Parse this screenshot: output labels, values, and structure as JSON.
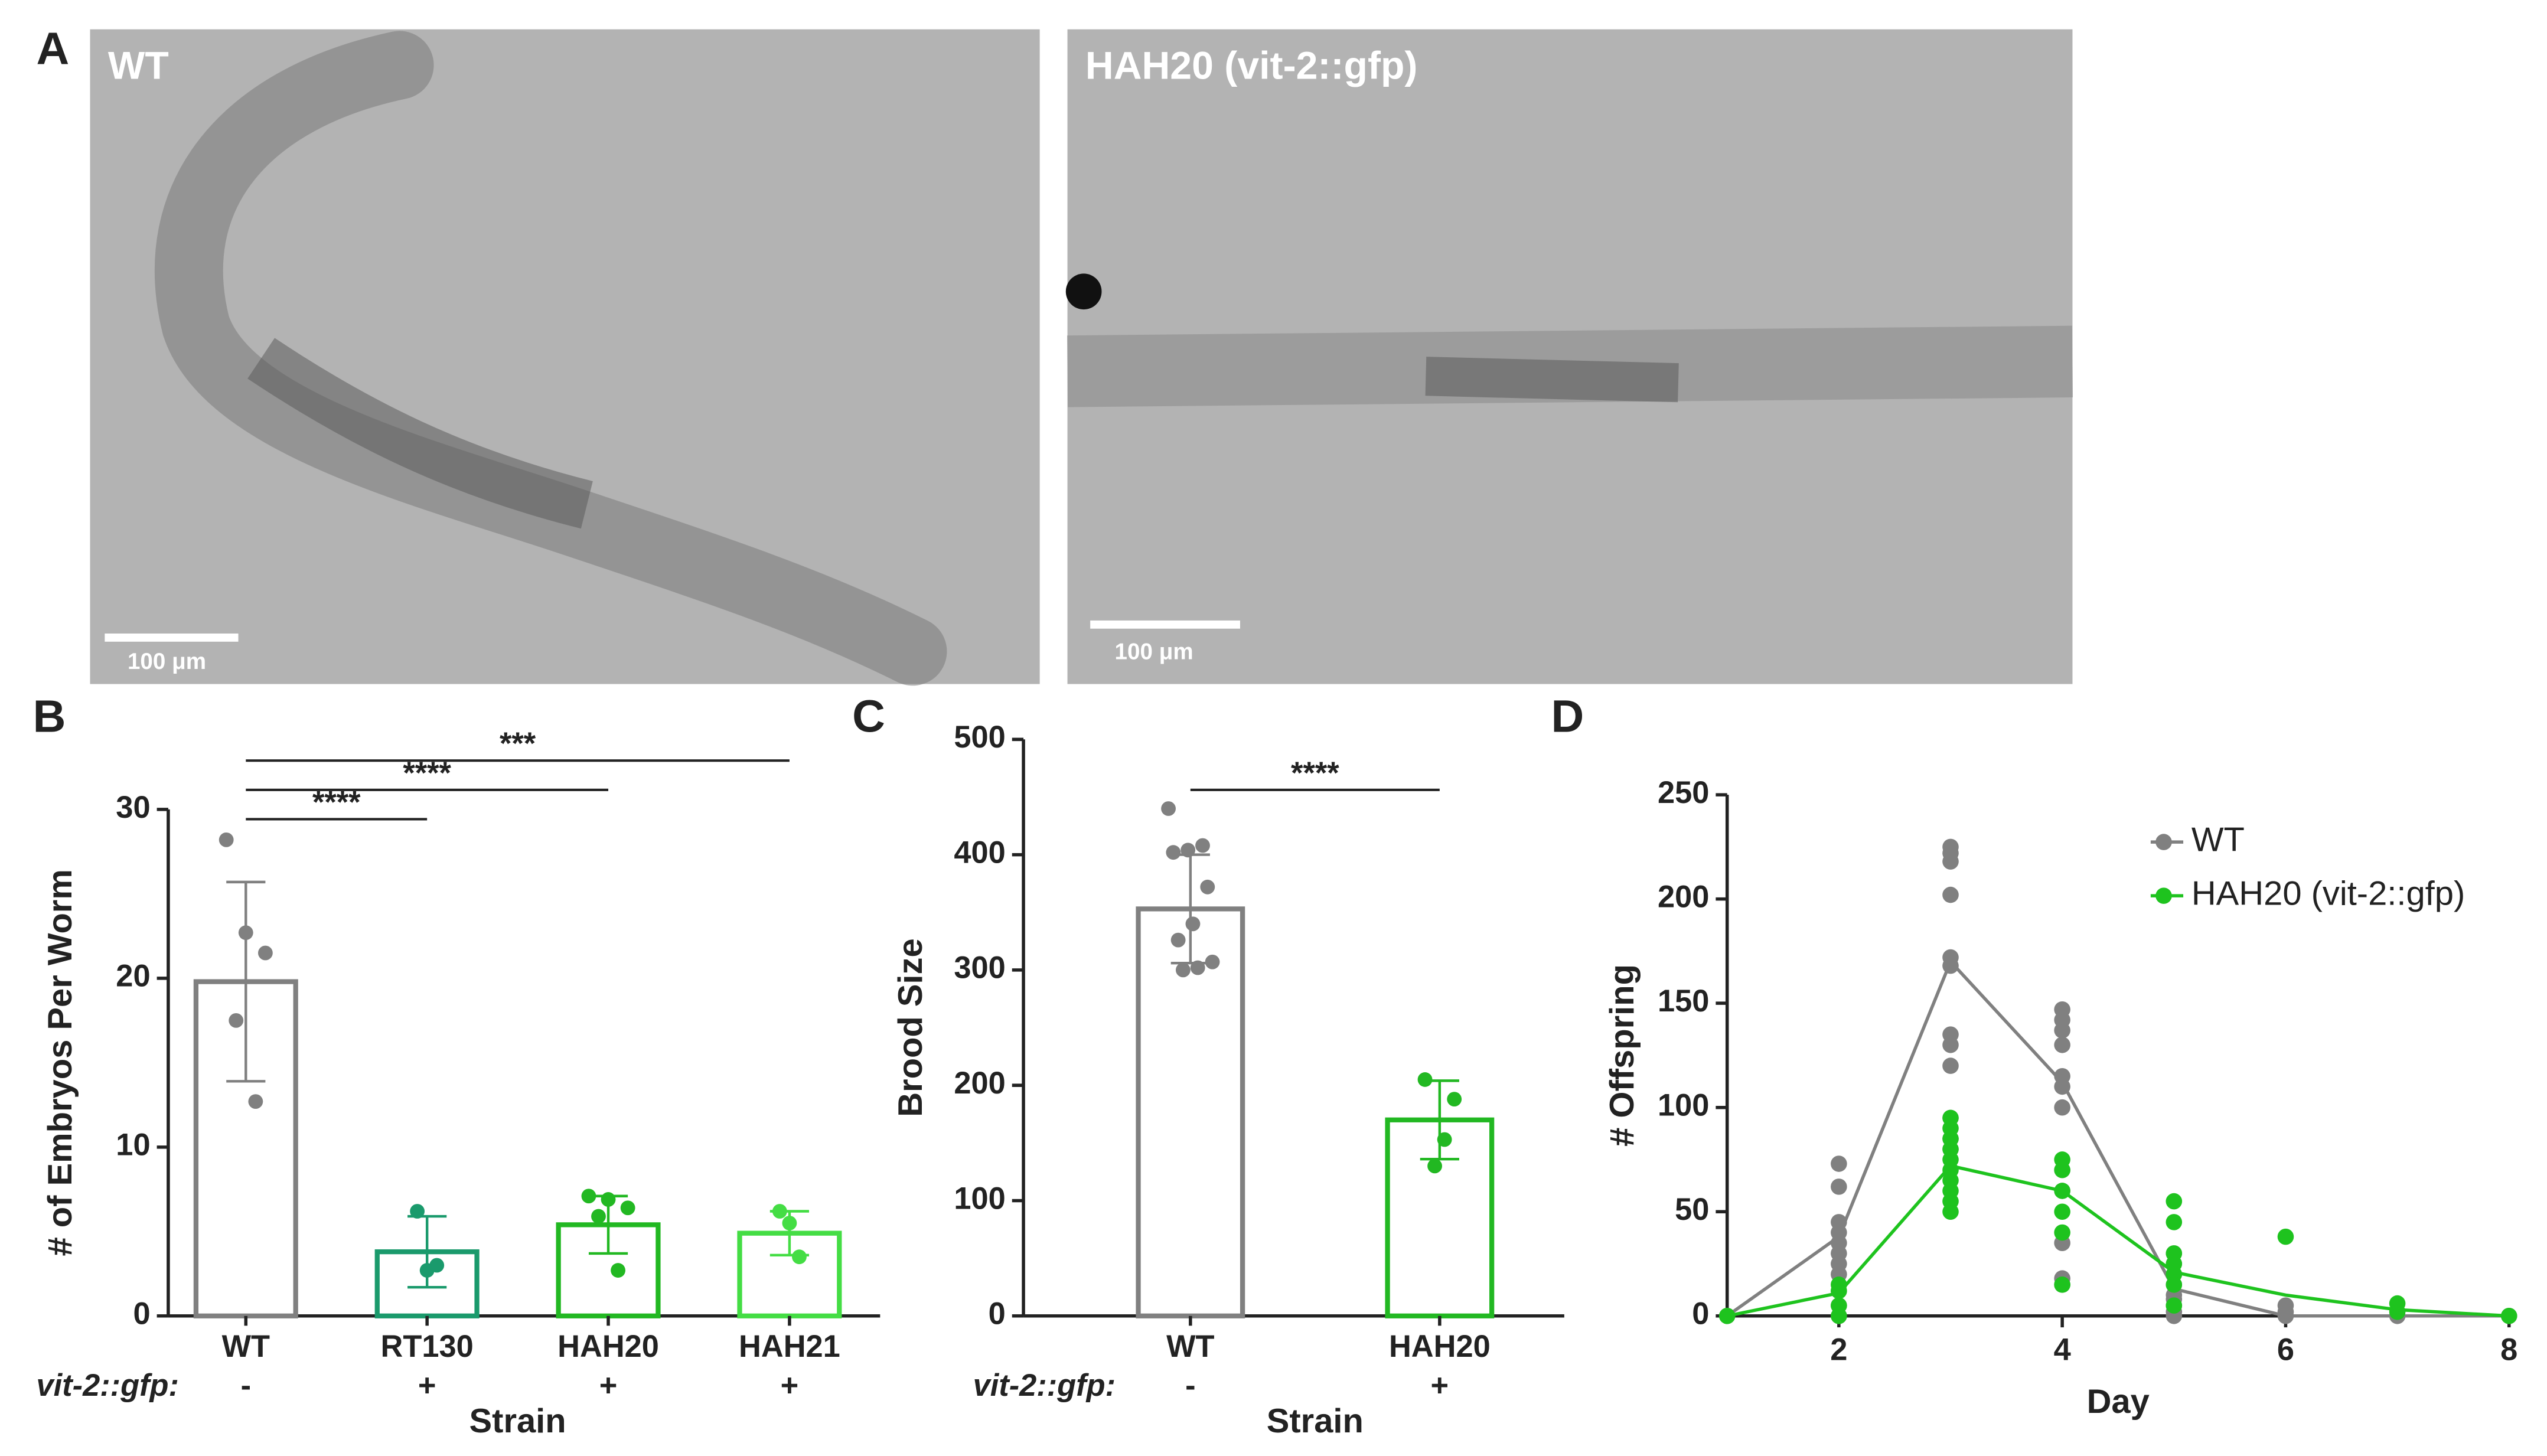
{
  "panel_a": {
    "letter": "A",
    "images": [
      {
        "label": "WT",
        "scale_bar": "100 μm"
      },
      {
        "label": "HAH20 (vit-2::gfp)",
        "scale_bar": "100 μm"
      }
    ]
  },
  "chart_data": [
    {
      "type": "bar",
      "panel": "B",
      "y_label": "# of Embryos Per Worm",
      "x_label": "Strain",
      "categories": [
        "WT",
        "RT130",
        "HAH20",
        "HAH21"
      ],
      "colors": [
        "#808080",
        "#1a9a6c",
        "#22b822",
        "#44dd44"
      ],
      "values": [
        19.8,
        3.8,
        5.4,
        4.9
      ],
      "errors": [
        5.9,
        2.1,
        1.7,
        1.3
      ],
      "points": [
        [
          28.2,
          22.7,
          21.5,
          17.5,
          12.7
        ],
        [
          6.2,
          2.7,
          3.0
        ],
        [
          7.1,
          6.9,
          6.4,
          5.9,
          2.7
        ],
        [
          6.2,
          5.5,
          3.5
        ]
      ],
      "genotype": {
        "label": "vit-2::gfp:",
        "values": [
          "-",
          "+",
          "+",
          "+"
        ]
      },
      "significance": [
        {
          "between": [
            "WT",
            "RT130"
          ],
          "label": "****"
        },
        {
          "between": [
            "WT",
            "HAH20"
          ],
          "label": "****"
        },
        {
          "between": [
            "WT",
            "HAH21"
          ],
          "label": "***"
        }
      ],
      "ylim": [
        0,
        30
      ],
      "yticks": [
        0,
        10,
        20,
        30
      ]
    },
    {
      "type": "bar",
      "panel": "C",
      "y_label": "Brood Size",
      "x_label": "Strain",
      "categories": [
        "WT",
        "HAH20"
      ],
      "colors": [
        "#808080",
        "#22b822"
      ],
      "values": [
        353,
        170
      ],
      "errors": [
        47,
        34
      ],
      "points": [
        [
          440,
          408,
          404,
          402,
          372,
          340,
          326,
          307,
          302,
          300
        ],
        [
          205,
          188,
          153,
          130
        ]
      ],
      "genotype": {
        "label": "vit-2::gfp:",
        "values": [
          "-",
          "+"
        ]
      },
      "significance": [
        {
          "between": [
            "WT",
            "HAH20"
          ],
          "label": "****"
        }
      ],
      "ylim": [
        0,
        500
      ],
      "yticks": [
        0,
        100,
        200,
        300,
        400,
        500
      ]
    },
    {
      "type": "line",
      "panel": "D",
      "y_label": "# Offspring",
      "x_label": "Day",
      "x": [
        1,
        2,
        3,
        4,
        5,
        6,
        7,
        8
      ],
      "series": [
        {
          "name": "WT",
          "color": "#808080",
          "values": [
            0,
            38,
            170,
            112,
            13,
            0,
            0,
            0
          ],
          "points": {
            "x": [
              1,
              2,
              2,
              2,
              2,
              2,
              2,
              2,
              2,
              2,
              2,
              2,
              3,
              3,
              3,
              3,
              3,
              3,
              3,
              3,
              3,
              3,
              3,
              3,
              4,
              4,
              4,
              4,
              4,
              4,
              4,
              4,
              4,
              4,
              4,
              4,
              5,
              5,
              5,
              5,
              5,
              5,
              5,
              5,
              5,
              6,
              6,
              6,
              7,
              8
            ],
            "y": [
              0,
              73,
              62,
              45,
              40,
              35,
              30,
              25,
              20,
              12,
              5,
              0,
              225,
              222,
              218,
              202,
              172,
              168,
              135,
              130,
              120,
              95,
              85,
              80,
              147,
              142,
              137,
              130,
              115,
              110,
              100,
              70,
              60,
              35,
              18,
              15,
              30,
              25,
              20,
              15,
              10,
              8,
              5,
              2,
              0,
              5,
              2,
              0,
              0,
              0
            ]
          }
        },
        {
          "name": "HAH20 (vit-2::gfp)",
          "color": "#1ec31e",
          "values": [
            0,
            11,
            72,
            60,
            21,
            10,
            3,
            0
          ],
          "points": {
            "x": [
              1,
              2,
              2,
              2,
              2,
              3,
              3,
              3,
              3,
              3,
              3,
              3,
              3,
              3,
              3,
              4,
              4,
              4,
              4,
              4,
              4,
              5,
              5,
              5,
              5,
              5,
              5,
              5,
              6,
              7,
              7,
              8
            ],
            "y": [
              0,
              15,
              12,
              5,
              0,
              95,
              90,
              85,
              80,
              75,
              70,
              65,
              60,
              55,
              50,
              75,
              70,
              60,
              50,
              40,
              15,
              55,
              45,
              30,
              25,
              20,
              15,
              5,
              38,
              6,
              2,
              0
            ]
          }
        }
      ],
      "xlim": [
        1,
        8
      ],
      "xticks": [
        2,
        4,
        6,
        8
      ],
      "ylim": [
        0,
        250
      ],
      "yticks": [
        0,
        50,
        100,
        150,
        200,
        250
      ]
    }
  ]
}
